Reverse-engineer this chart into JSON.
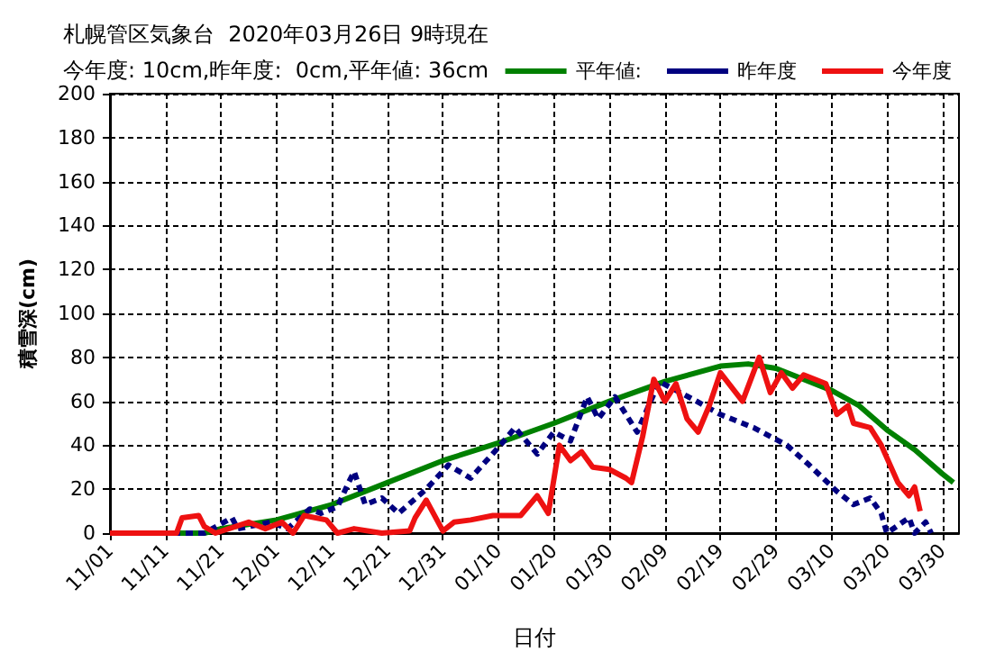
{
  "chart_data": {
    "type": "line",
    "title": "札幌管区気象台  2020年03月26日 9時現在",
    "subtitle": "今年度: 10cm,昨年度:  0cm,平年値: 36cm",
    "xlabel": "日付",
    "ylabel": "積雪深(cm)",
    "xlim": [
      "2019-11-01",
      "2020-04-02"
    ],
    "xticks": [
      {
        "value": "2019-11-01",
        "label": "11/01"
      },
      {
        "value": "2019-11-11",
        "label": "11/11"
      },
      {
        "value": "2019-11-21",
        "label": "11/21"
      },
      {
        "value": "2019-12-01",
        "label": "12/01"
      },
      {
        "value": "2019-12-11",
        "label": "12/11"
      },
      {
        "value": "2019-12-21",
        "label": "12/21"
      },
      {
        "value": "2019-12-31",
        "label": "12/31"
      },
      {
        "value": "2020-01-10",
        "label": "01/10"
      },
      {
        "value": "2020-01-20",
        "label": "01/20"
      },
      {
        "value": "2020-01-30",
        "label": "01/30"
      },
      {
        "value": "2020-02-09",
        "label": "02/09"
      },
      {
        "value": "2020-02-19",
        "label": "02/19"
      },
      {
        "value": "2020-02-29",
        "label": "02/29"
      },
      {
        "value": "2020-03-10",
        "label": "03/10"
      },
      {
        "value": "2020-03-20",
        "label": "03/20"
      },
      {
        "value": "2020-03-30",
        "label": "03/30"
      }
    ],
    "ylim": [
      0,
      200
    ],
    "yticks": [
      0,
      20,
      40,
      60,
      80,
      100,
      120,
      140,
      160,
      180,
      200
    ],
    "grid": true,
    "legend": "top right",
    "marker": "none",
    "series": [
      {
        "name": "平年値:",
        "color": "#008000",
        "line_style": "solid",
        "x": [
          "2019-11-01",
          "2019-11-18",
          "2019-11-21",
          "2019-12-01",
          "2019-12-11",
          "2019-12-21",
          "2019-12-31",
          "2020-01-10",
          "2020-01-20",
          "2020-01-30",
          "2020-02-09",
          "2020-02-19",
          "2020-02-24",
          "2020-02-29",
          "2020-03-10",
          "2020-03-15",
          "2020-03-20",
          "2020-03-25",
          "2020-03-30",
          "2020-04-01"
        ],
        "values": [
          0,
          0,
          2,
          6,
          13,
          23,
          33,
          41,
          50,
          60,
          69,
          76,
          77,
          75,
          65,
          58,
          47,
          38,
          27,
          23
        ]
      },
      {
        "name": "昨年度",
        "color": "#000080",
        "line_style": "dashed",
        "x": [
          "2019-11-01",
          "2019-11-18",
          "2019-11-23",
          "2019-11-24",
          "2019-11-30",
          "2019-12-03",
          "2019-12-07",
          "2019-12-09",
          "2019-12-12",
          "2019-12-14",
          "2019-12-15",
          "2019-12-17",
          "2019-12-20",
          "2019-12-23",
          "2019-12-28",
          "2020-01-01",
          "2020-01-05",
          "2020-01-10",
          "2020-01-13",
          "2020-01-17",
          "2020-01-20",
          "2020-01-23",
          "2020-01-26",
          "2020-01-28",
          "2020-01-31",
          "2020-02-02",
          "2020-02-04",
          "2020-02-08",
          "2020-02-14",
          "2020-02-19",
          "2020-02-25",
          "2020-03-02",
          "2020-03-06",
          "2020-03-11",
          "2020-03-14",
          "2020-03-17",
          "2020-03-19",
          "2020-03-20",
          "2020-03-24",
          "2020-03-25",
          "2020-03-27",
          "2020-03-28"
        ],
        "values": [
          0,
          0,
          7,
          2,
          5,
          2,
          11,
          9,
          12,
          23,
          28,
          13,
          16,
          9,
          20,
          31,
          25,
          39,
          48,
          36,
          46,
          42,
          62,
          52,
          62,
          54,
          46,
          69,
          61,
          54,
          48,
          40,
          31,
          19,
          13,
          16,
          9,
          0,
          7,
          0,
          5,
          0
        ]
      },
      {
        "name": "今年度",
        "color": "#ee1111",
        "line_style": "solid",
        "x": [
          "2019-11-01",
          "2019-11-13",
          "2019-11-14",
          "2019-11-17",
          "2019-11-18",
          "2019-11-20",
          "2019-11-26",
          "2019-11-29",
          "2019-12-02",
          "2019-12-04",
          "2019-12-06",
          "2019-12-10",
          "2019-12-12",
          "2019-12-15",
          "2019-12-20",
          "2019-12-25",
          "2019-12-26",
          "2019-12-28",
          "2019-12-31",
          "2020-01-02",
          "2020-01-05",
          "2020-01-09",
          "2020-01-14",
          "2020-01-17",
          "2020-01-19",
          "2020-01-21",
          "2020-01-23",
          "2020-01-25",
          "2020-01-27",
          "2020-01-30",
          "2020-02-02",
          "2020-02-03",
          "2020-02-05",
          "2020-02-07",
          "2020-02-09",
          "2020-02-11",
          "2020-02-13",
          "2020-02-15",
          "2020-02-17",
          "2020-02-19",
          "2020-02-23",
          "2020-02-26",
          "2020-02-28",
          "2020-03-01",
          "2020-03-03",
          "2020-03-05",
          "2020-03-09",
          "2020-03-11",
          "2020-03-13",
          "2020-03-14",
          "2020-03-17",
          "2020-03-19",
          "2020-03-22",
          "2020-03-24",
          "2020-03-25",
          "2020-03-26"
        ],
        "values": [
          0,
          0,
          7,
          8,
          3,
          0,
          5,
          2,
          5,
          0,
          8,
          6,
          0,
          2,
          0,
          1,
          7,
          15,
          1,
          5,
          6,
          8,
          8,
          17,
          9,
          40,
          33,
          37,
          30,
          29,
          25,
          23,
          44,
          70,
          60,
          68,
          52,
          46,
          58,
          73,
          60,
          80,
          64,
          73,
          66,
          72,
          68,
          54,
          58,
          50,
          48,
          40,
          23,
          17,
          21,
          10
        ]
      }
    ]
  }
}
